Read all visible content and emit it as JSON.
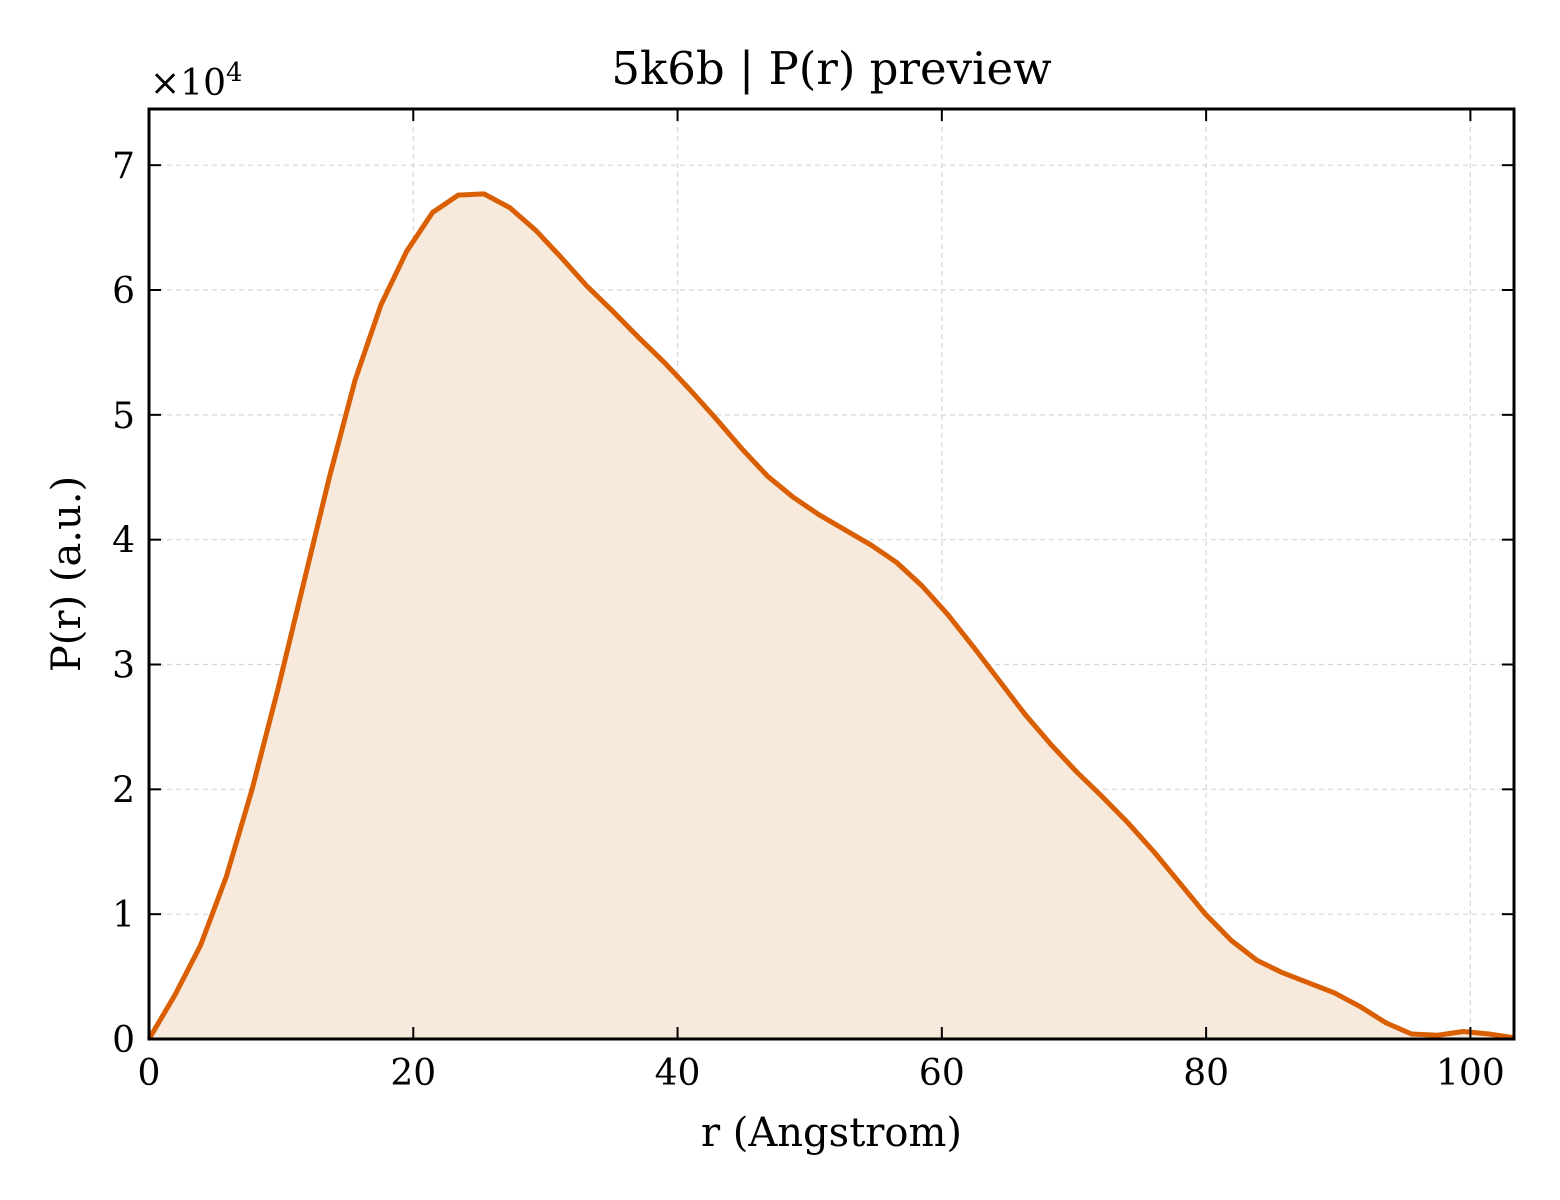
{
  "chart_data": {
    "type": "area",
    "title": "5k6b | P(r) preview",
    "xlabel": "r (Angstrom)",
    "ylabel": "P(r) (a.u.)",
    "y_scale_factor_label": "×10",
    "y_scale_factor_exponent": "4",
    "xlim": [
      0,
      103.3
    ],
    "ylim": [
      0,
      7.45
    ],
    "xticks": [
      0,
      20,
      40,
      60,
      80,
      100
    ],
    "xtick_labels": [
      "0",
      "20",
      "40",
      "60",
      "80",
      "100"
    ],
    "yticks": [
      0,
      1,
      2,
      3,
      4,
      5,
      6,
      7
    ],
    "ytick_labels": [
      "0",
      "1",
      "2",
      "3",
      "4",
      "5",
      "6",
      "7"
    ],
    "grid": true,
    "line_color": "#d95f02",
    "fill_color": "#f8e9dd",
    "series": [
      {
        "x": [
          0,
          1.95,
          3.9,
          5.85,
          7.8,
          9.75,
          11.7,
          13.65,
          15.6,
          17.55,
          19.5,
          21.45,
          23.4,
          25.35,
          27.3,
          29.25,
          31.2,
          33.15,
          35.1,
          37.05,
          39.0,
          40.95,
          42.9,
          44.85,
          46.8,
          48.75,
          50.7,
          52.65,
          54.6,
          56.55,
          58.5,
          60.45,
          62.4,
          64.35,
          66.3,
          68.25,
          70.2,
          72.15,
          74.1,
          76.05,
          78.0,
          79.95,
          81.9,
          83.85,
          85.8,
          87.75,
          89.7,
          91.65,
          93.6,
          95.55,
          97.5,
          99.45,
          101.4,
          103.3
        ],
        "y": [
          0.0,
          0.35,
          0.75,
          1.3,
          2.0,
          2.8,
          3.65,
          4.5,
          5.28,
          5.88,
          6.31,
          6.62,
          6.76,
          6.77,
          6.66,
          6.48,
          6.26,
          6.03,
          5.83,
          5.62,
          5.42,
          5.2,
          4.97,
          4.73,
          4.51,
          4.34,
          4.2,
          4.08,
          3.96,
          3.82,
          3.63,
          3.4,
          3.14,
          2.87,
          2.6,
          2.36,
          2.14,
          1.94,
          1.73,
          1.5,
          1.25,
          1.0,
          0.79,
          0.63,
          0.53,
          0.45,
          0.37,
          0.26,
          0.13,
          0.04,
          0.03,
          0.06,
          0.04,
          0.01
        ]
      }
    ]
  }
}
